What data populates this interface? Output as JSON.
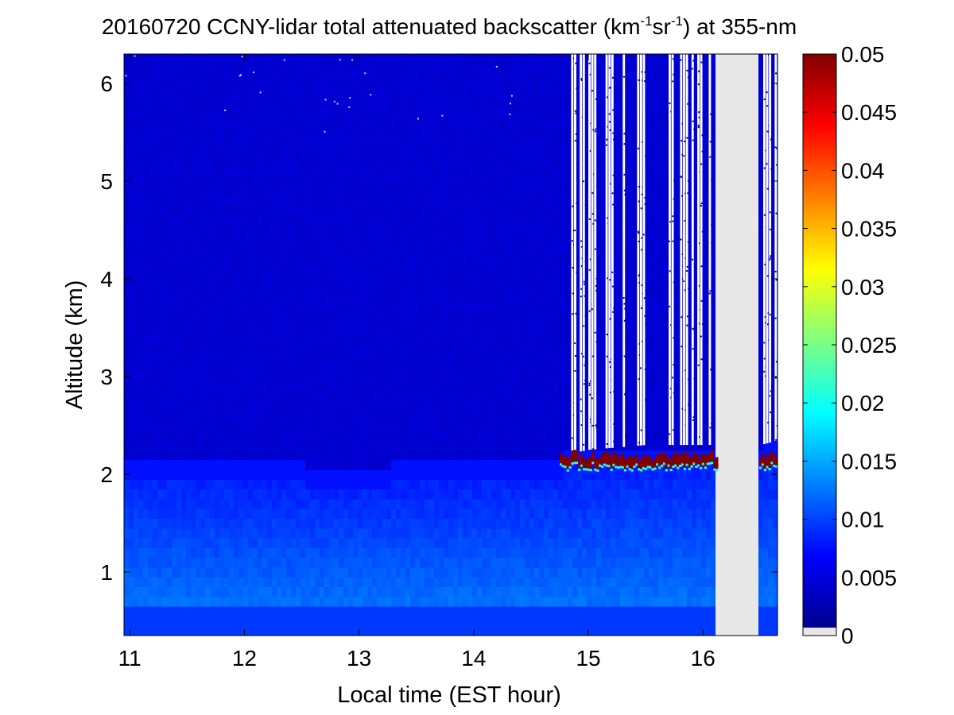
{
  "chart_data": {
    "type": "heatmap",
    "title": {
      "prefix": "20160720 CCNY-lidar total attenuated backscatter (km",
      "sup1": "-1",
      "mid": "sr",
      "sup2": "-1",
      "suffix": ") at 355-nm"
    },
    "xlabel": "Local time (EST hour)",
    "ylabel": "Altitude (km)",
    "xlim": [
      10.95,
      16.65
    ],
    "ylim": [
      0.35,
      6.3
    ],
    "x_ticks": [
      11,
      12,
      13,
      14,
      15,
      16
    ],
    "y_ticks": [
      1,
      2,
      3,
      4,
      5,
      6
    ],
    "x_tick_labels": [
      "11",
      "12",
      "13",
      "14",
      "15",
      "16"
    ],
    "y_tick_labels": [
      "1",
      "2",
      "3",
      "4",
      "5",
      "6"
    ],
    "colorbar": {
      "colormap": "jet",
      "range": [
        0,
        0.05
      ],
      "ticks": [
        0,
        0.005,
        0.01,
        0.015,
        0.02,
        0.025,
        0.03,
        0.035,
        0.04,
        0.045,
        0.05
      ],
      "tick_labels": [
        "0",
        "0.005",
        "0.01",
        "0.015",
        "0.02",
        "0.025",
        "0.03",
        "0.035",
        "0.04",
        "0.045",
        "0.05"
      ],
      "no_data_color": "#e8e8e8"
    },
    "features": {
      "boundary_layer_top_km": [
        {
          "t": 10.95,
          "z": 2.05
        },
        {
          "t": 11.5,
          "z": 2.02
        },
        {
          "t": 12.0,
          "z": 1.98
        },
        {
          "t": 12.5,
          "z": 1.95
        },
        {
          "t": 13.0,
          "z": 1.93
        },
        {
          "t": 13.5,
          "z": 1.97
        },
        {
          "t": 14.0,
          "z": 2.0
        },
        {
          "t": 14.5,
          "z": 2.03
        },
        {
          "t": 14.75,
          "z": 2.05
        },
        {
          "t": 15.0,
          "z": 2.1
        },
        {
          "t": 15.5,
          "z": 2.15
        },
        {
          "t": 16.1,
          "z": 2.15
        },
        {
          "t": 16.5,
          "z": 2.15
        },
        {
          "t": 16.65,
          "z": 2.2
        }
      ],
      "cloud_layer": {
        "t_start": 14.75,
        "t_end": 16.65,
        "z_bottom": 2.05,
        "z_top": 2.3,
        "value": 0.05
      },
      "noisy_region_start": 14.75,
      "no_data_intervals": [
        [
          16.12,
          16.48
        ]
      ],
      "typical_values": {
        "free_troposphere": 0.004,
        "boundary_layer": 0.012,
        "near_surface": 0.009
      }
    }
  },
  "colors": {
    "background": "#ffffff",
    "axes": "#000000",
    "no_data": "#e8e8e8"
  }
}
